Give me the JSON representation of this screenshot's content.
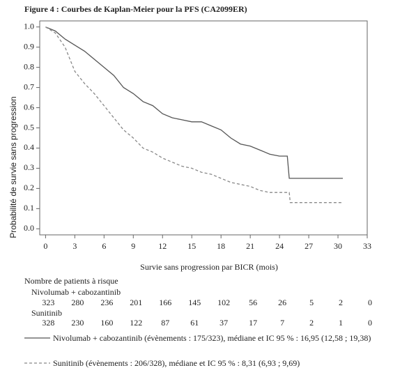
{
  "chart_data": {
    "type": "km",
    "title": "Figure 4 : Courbes de Kaplan-Meier pour la PFS (CA2099ER)",
    "x_label": "Survie sans progression par BICR (mois)",
    "y_label": "Probabilité de survie sans progression",
    "xlim": [
      -0.6,
      33
    ],
    "ylim": [
      -0.03,
      1.03
    ],
    "xticks": [
      0,
      3,
      6,
      9,
      12,
      15,
      18,
      21,
      24,
      27,
      30,
      33
    ],
    "yticks": [
      {
        "value": 0,
        "label": "0.0"
      },
      0.1,
      0.2,
      0.3,
      0.4,
      0.5,
      0.6,
      0.7,
      0.8,
      0.9,
      {
        "value": 1,
        "label": "1.0"
      }
    ],
    "series": [
      {
        "name": "Nivolumab + cabozantinib",
        "color": "#555555",
        "dash": false,
        "legend_label": "Nivolumab + cabozantinib (évènements : 175/323), médiane et IC 95 % : 16,95 (12,58 ; 19,38)",
        "x": [
          0,
          1,
          2,
          3,
          4,
          5,
          6,
          7,
          8,
          9,
          10,
          11,
          12,
          13,
          14,
          15,
          16,
          17,
          18,
          19,
          20,
          21,
          22,
          23,
          24,
          24.8,
          25,
          30.5
        ],
        "values": [
          1.0,
          0.98,
          0.94,
          0.91,
          0.88,
          0.84,
          0.8,
          0.76,
          0.7,
          0.67,
          0.63,
          0.61,
          0.57,
          0.55,
          0.54,
          0.53,
          0.53,
          0.51,
          0.49,
          0.45,
          0.42,
          0.41,
          0.39,
          0.37,
          0.36,
          0.36,
          0.25,
          0.25
        ]
      },
      {
        "name": "Sunitinib",
        "color": "#888888",
        "dash": true,
        "legend_label": "Sunitinib (évènements : 206/328), médiane et IC 95 % : 8,31 (6,93 ; 9,69)",
        "x": [
          0,
          1,
          2,
          3,
          4,
          5,
          6,
          7,
          8,
          9,
          10,
          11,
          12,
          13,
          14,
          15,
          16,
          17,
          18,
          19,
          20,
          21,
          22,
          23,
          25,
          25.1,
          30.5
        ],
        "values": [
          1.0,
          0.97,
          0.9,
          0.78,
          0.72,
          0.67,
          0.61,
          0.55,
          0.49,
          0.45,
          0.4,
          0.38,
          0.35,
          0.33,
          0.31,
          0.3,
          0.28,
          0.27,
          0.25,
          0.23,
          0.22,
          0.21,
          0.19,
          0.18,
          0.18,
          0.13,
          0.13
        ]
      }
    ],
    "risk_table": {
      "title": "Nombre de patients à risque",
      "rows": [
        [
          323,
          280,
          236,
          201,
          166,
          145,
          102,
          56,
          26,
          5,
          2,
          0
        ],
        [
          328,
          230,
          160,
          122,
          87,
          61,
          37,
          17,
          7,
          2,
          1,
          0
        ]
      ]
    }
  }
}
